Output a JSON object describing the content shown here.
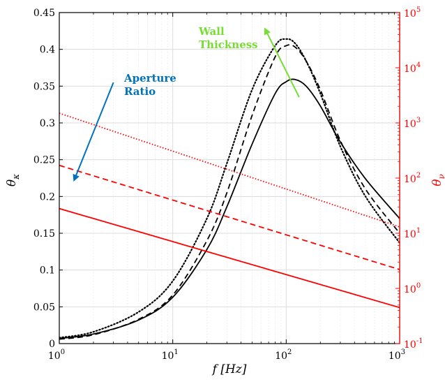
{
  "chart_data": {
    "type": "line",
    "xlabel": "f [Hz]",
    "ylabel_left": "θ_κ",
    "ylabel_right": "θ_ν",
    "x_scale": "log",
    "xlim": [
      1,
      1000
    ],
    "ylim_left": [
      0,
      0.45
    ],
    "ylim_right": [
      0.1,
      100000
    ],
    "y_right_scale": "log",
    "grid": true,
    "x_ticks": [
      {
        "base": "10",
        "exp": "0",
        "value": 1
      },
      {
        "base": "10",
        "exp": "1",
        "value": 10
      },
      {
        "base": "10",
        "exp": "2",
        "value": 100
      },
      {
        "base": "10",
        "exp": "3",
        "value": 1000
      }
    ],
    "y_left_ticks": [
      {
        "label": "0",
        "value": 0
      },
      {
        "label": "0.05",
        "value": 0.05
      },
      {
        "label": "0.1",
        "value": 0.1
      },
      {
        "label": "0.15",
        "value": 0.15
      },
      {
        "label": "0.2",
        "value": 0.2
      },
      {
        "label": "0.25",
        "value": 0.25
      },
      {
        "label": "0.3",
        "value": 0.3
      },
      {
        "label": "0.35",
        "value": 0.35
      },
      {
        "label": "0.4",
        "value": 0.4
      },
      {
        "label": "0.45",
        "value": 0.45
      }
    ],
    "y_right_ticks": [
      {
        "base": "10",
        "exp": "-1",
        "value": 0.1
      },
      {
        "base": "10",
        "exp": "0",
        "value": 1
      },
      {
        "base": "10",
        "exp": "1",
        "value": 10
      },
      {
        "base": "10",
        "exp": "2",
        "value": 100
      },
      {
        "base": "10",
        "exp": "3",
        "value": 1000
      },
      {
        "base": "10",
        "exp": "4",
        "value": 10000
      },
      {
        "base": "10",
        "exp": "5",
        "value": 100000
      }
    ],
    "left_series": [
      {
        "style": "solid",
        "color": "#000000",
        "axis": "left",
        "x": [
          1,
          2,
          5,
          10,
          20,
          30,
          50,
          80,
          100,
          120,
          150,
          200,
          300,
          500,
          1000
        ],
        "y": [
          0.007,
          0.013,
          0.032,
          0.063,
          0.128,
          0.186,
          0.271,
          0.34,
          0.356,
          0.359,
          0.35,
          0.323,
          0.274,
          0.224,
          0.17
        ]
      },
      {
        "style": "dashed",
        "color": "#000000",
        "axis": "left",
        "x": [
          1,
          2,
          5,
          10,
          20,
          30,
          50,
          80,
          100,
          120,
          150,
          200,
          300,
          500,
          1000
        ],
        "y": [
          0.006,
          0.012,
          0.033,
          0.066,
          0.14,
          0.205,
          0.31,
          0.39,
          0.405,
          0.403,
          0.384,
          0.345,
          0.276,
          0.21,
          0.15
        ]
      },
      {
        "style": "dotted",
        "color": "#000000",
        "axis": "left",
        "x": [
          1,
          2,
          5,
          10,
          20,
          30,
          50,
          80,
          100,
          120,
          150,
          200,
          300,
          500,
          1000
        ],
        "y": [
          0.008,
          0.016,
          0.043,
          0.085,
          0.17,
          0.245,
          0.345,
          0.405,
          0.414,
          0.408,
          0.384,
          0.34,
          0.268,
          0.2,
          0.137
        ]
      }
    ],
    "right_series": [
      {
        "style": "solid",
        "color": "#ff0000",
        "axis": "right",
        "x": [
          1,
          1000
        ],
        "y": [
          28,
          0.45
        ]
      },
      {
        "style": "dashed",
        "color": "#ff0000",
        "axis": "right",
        "x": [
          1,
          1000
        ],
        "y": [
          170,
          2.2
        ]
      },
      {
        "style": "dotted",
        "color": "#ff0000",
        "axis": "right",
        "x": [
          1,
          1000
        ],
        "y": [
          1500,
          13
        ]
      }
    ],
    "annotations": [
      {
        "lines": [
          "Aperture",
          "Ratio"
        ],
        "color": "#0072bd",
        "arrow_from": {
          "x": 3.0,
          "y": 0.355
        },
        "arrow_to": {
          "x": 1.35,
          "y": 0.222
        }
      },
      {
        "lines": [
          "Wall",
          "Thickness"
        ],
        "color": "#77dd33",
        "arrow_from": {
          "x": 130,
          "y": 0.335
        },
        "arrow_to": {
          "x": 65,
          "y": 0.428
        }
      }
    ]
  }
}
